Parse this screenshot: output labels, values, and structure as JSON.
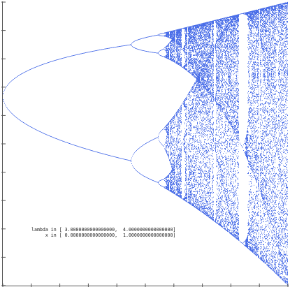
{
  "plot": {
    "xlim": [
      3,
      4
    ],
    "ylim": [
      0,
      1
    ],
    "xticks": [
      3,
      3.1,
      3.2,
      3.3,
      3.4,
      3.5,
      3.6,
      3.7,
      3.8,
      3.9,
      4
    ],
    "yticks": [
      0,
      0.1,
      0.2,
      0.3,
      0.4,
      0.5,
      0.6,
      0.7,
      0.8,
      0.9,
      1
    ],
    "color": "#4a6ee8"
  },
  "legend": {
    "lambda_line": "lambda in [ 3.0000000000000000,  4.0000000000000000]",
    "x_line": "     x in [ 0.0000000000000000,  1.0000000000000000]"
  }
}
